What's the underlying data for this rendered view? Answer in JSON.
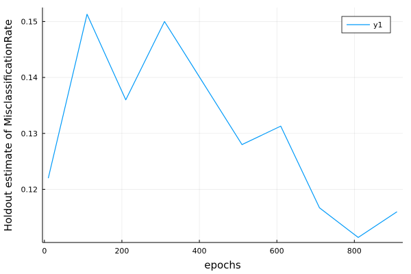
{
  "chart_data": {
    "type": "line",
    "title": "",
    "xlabel": "epochs",
    "ylabel": "Holdout estimate of MisclassificationRate",
    "xlim": [
      -5,
      925
    ],
    "ylim": [
      0.1105,
      0.1525
    ],
    "xticks": [
      0,
      200,
      400,
      600,
      800
    ],
    "yticks": [
      0.12,
      0.13,
      0.14,
      0.15
    ],
    "xtick_labels": [
      "0",
      "200",
      "400",
      "600",
      "800"
    ],
    "ytick_labels": [
      "0.12",
      "0.13",
      "0.14",
      "0.15"
    ],
    "grid": true,
    "legend_position": "top-right",
    "series": [
      {
        "name": "y1",
        "color": "#009af9",
        "x": [
          10,
          110,
          210,
          310,
          410,
          510,
          610,
          710,
          810,
          910
        ],
        "y": [
          0.122,
          0.1513,
          0.136,
          0.15,
          0.139,
          0.128,
          0.1313,
          0.1167,
          0.1114,
          0.116
        ]
      }
    ]
  }
}
